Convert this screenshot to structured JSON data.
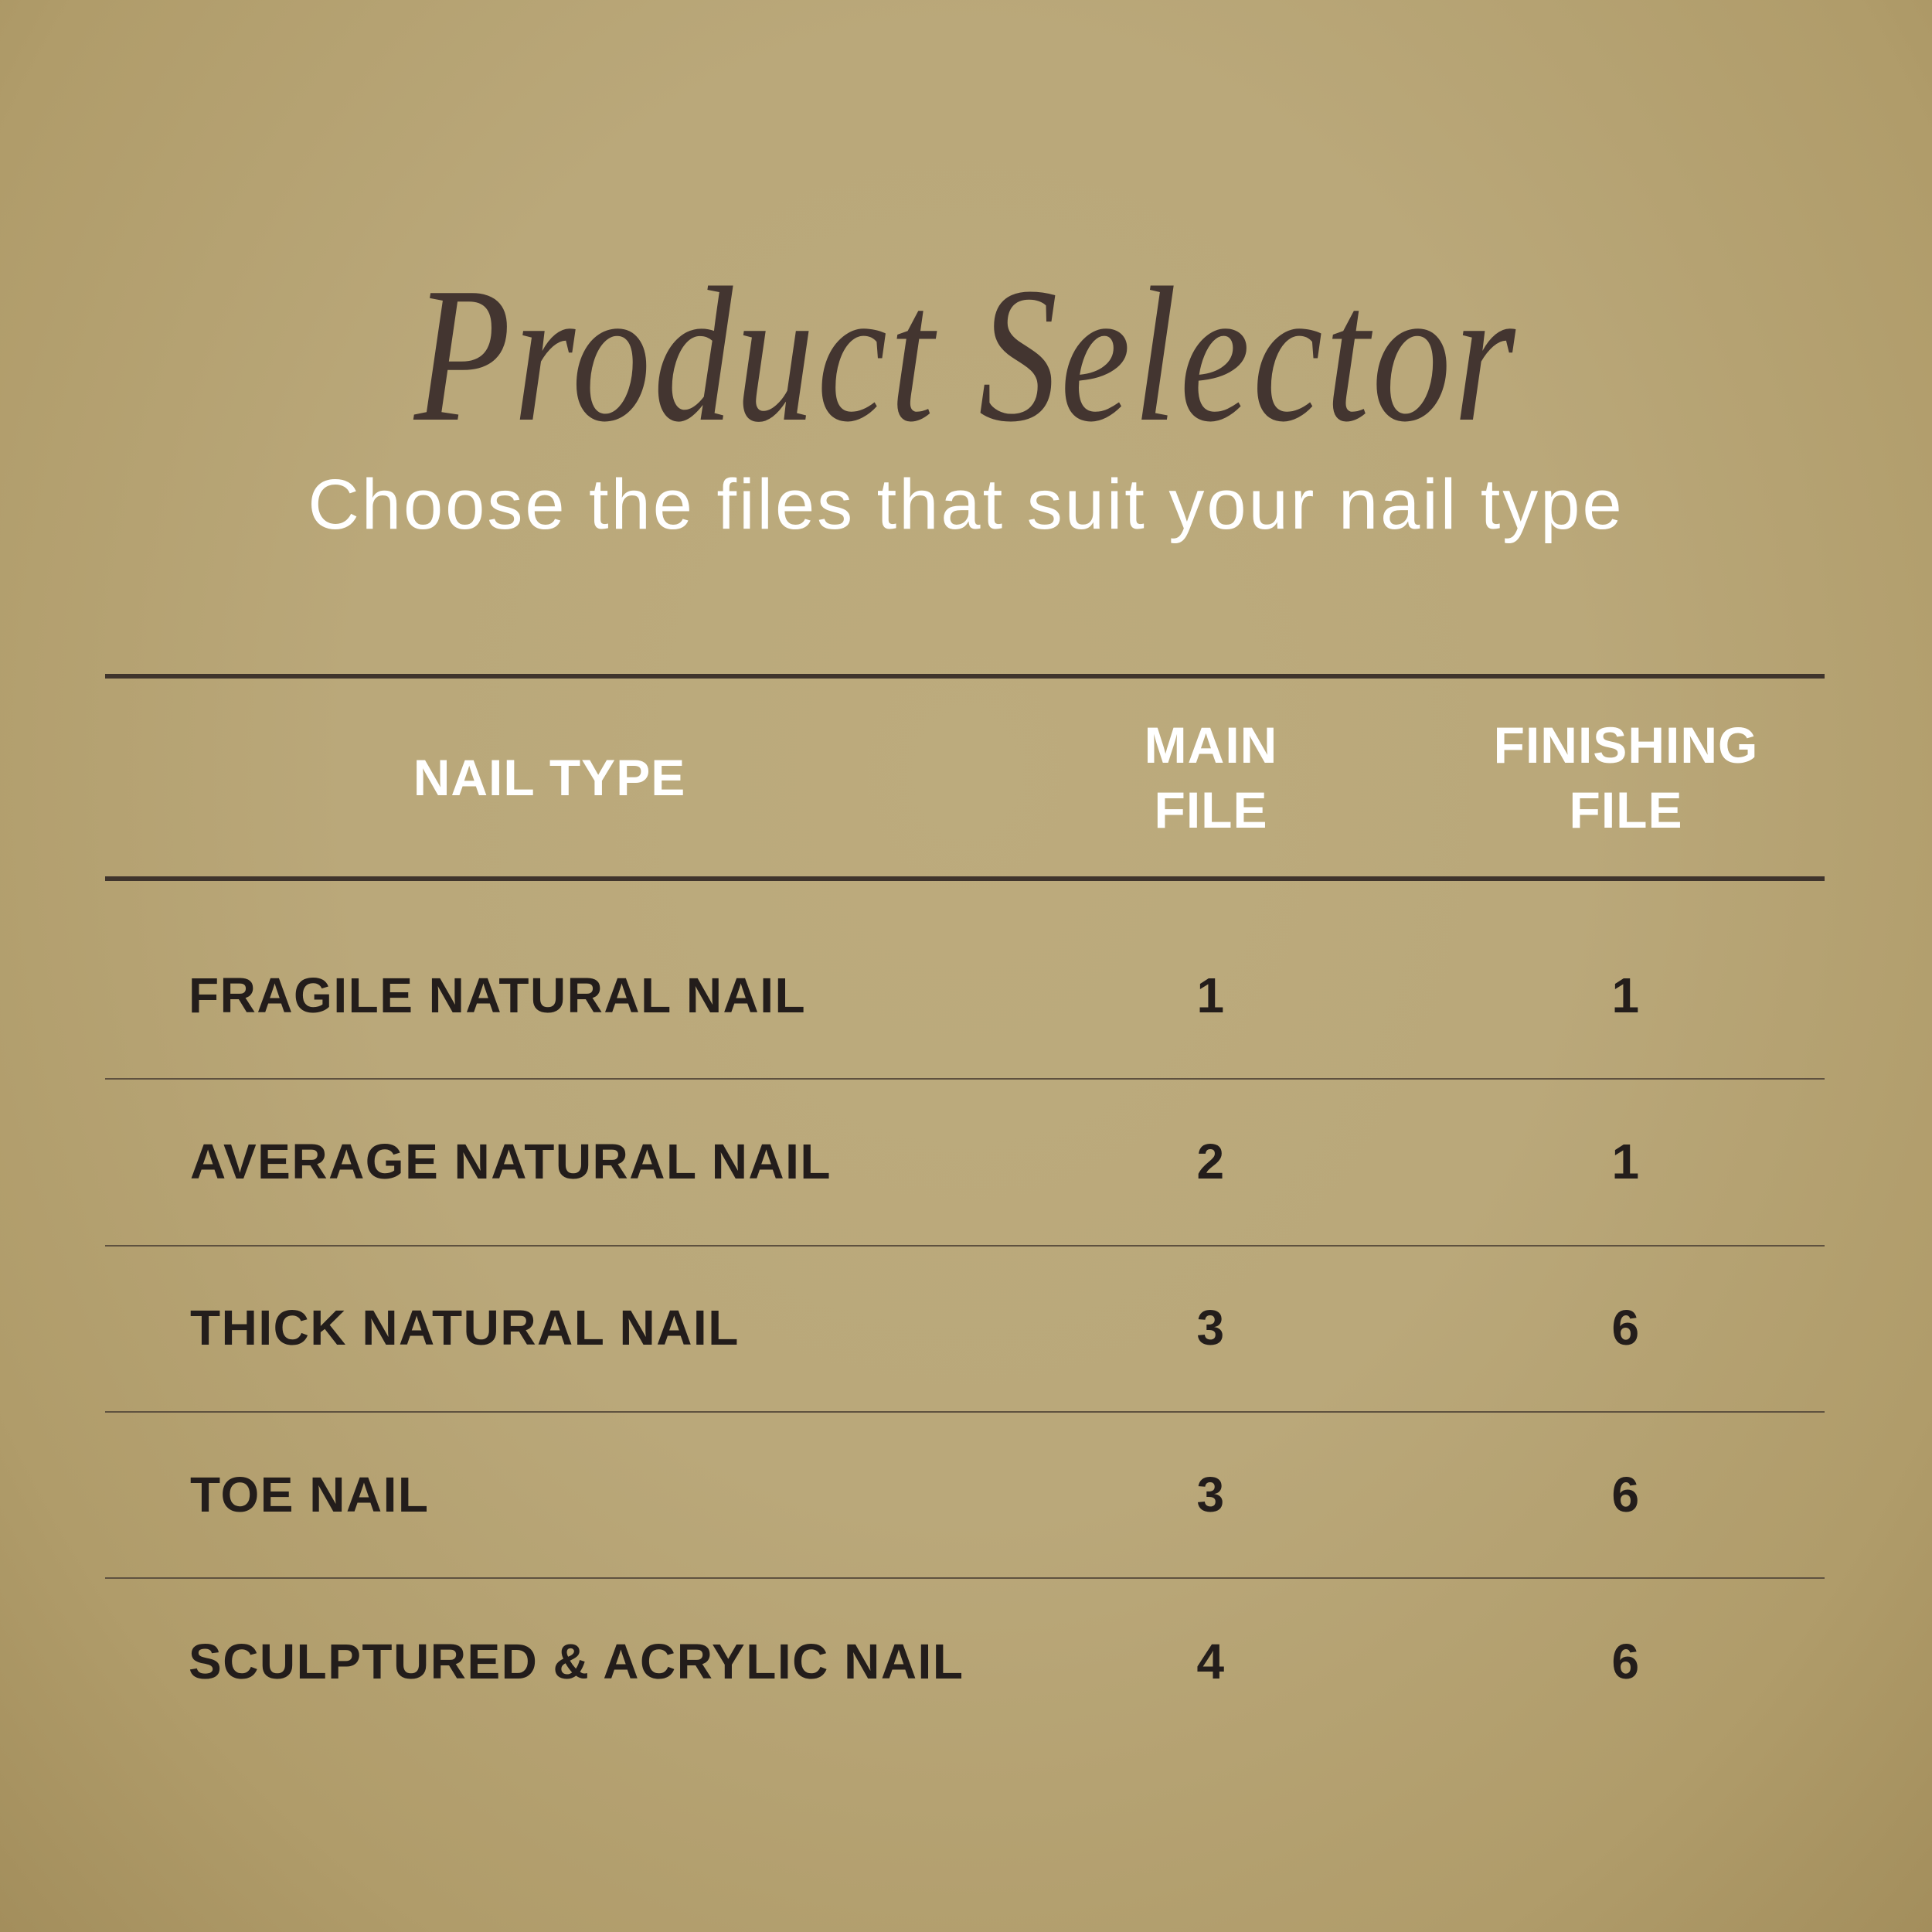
{
  "title": "Product Selector",
  "subtitle": "Choose the files that suit your nail type",
  "table": {
    "headers": {
      "nail_type": "NAIL TYPE",
      "main_file_1": "MAIN",
      "main_file_2": "FILE",
      "finishing_file_1": "FINISHING",
      "finishing_file_2": "FILE"
    },
    "rows": [
      {
        "nail_type": "FRAGILE NATURAL NAIL",
        "main_file": "1",
        "finishing_file": "1"
      },
      {
        "nail_type": "AVERAGE NATURAL NAIL",
        "main_file": "2",
        "finishing_file": "1"
      },
      {
        "nail_type": "THICK NATURAL NAIL",
        "main_file": "3",
        "finishing_file": "6"
      },
      {
        "nail_type": "TOE NAIL",
        "main_file": "3",
        "finishing_file": "6"
      },
      {
        "nail_type": "SCULPTURED & ACRYLIC NAIL",
        "main_file": "4",
        "finishing_file": "6"
      }
    ]
  },
  "colors": {
    "background": "#baa87a",
    "title": "#433530",
    "text": "#231d1b",
    "header_text": "#ffffff"
  }
}
